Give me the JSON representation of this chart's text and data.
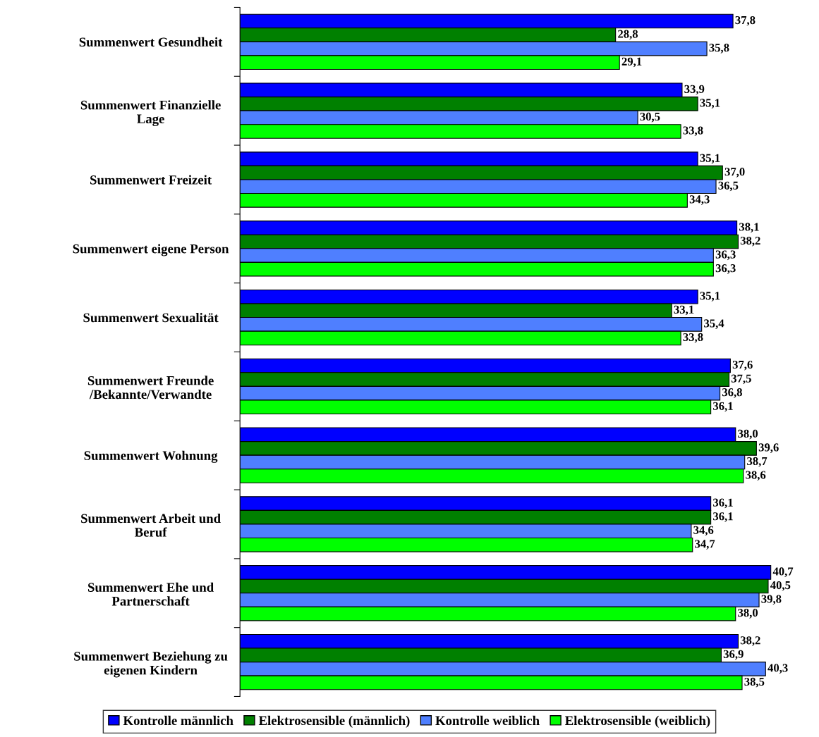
{
  "chart_data": {
    "type": "bar",
    "orientation": "horizontal",
    "categories": [
      "Summenwert Gesundheit",
      "Summenwert Finanzielle\nLage",
      "Summenwert Freizeit",
      "Summenwert eigene Person",
      "Summenwert Sexualität",
      "Summenwert Freunde\n/Bekannte/Verwandte",
      "Summenwert Wohnung",
      "Summenwert Arbeit und\nBeruf",
      "Summenwert Ehe und\nPartnerschaft",
      "Summenwert Beziehung zu\neigenen Kindern"
    ],
    "series": [
      {
        "name": "Kontrolle männlich",
        "color": "#0000ff",
        "values": [
          37.8,
          33.9,
          35.1,
          38.1,
          35.1,
          37.6,
          38.0,
          36.1,
          40.7,
          38.2
        ],
        "value_labels": [
          "37,8",
          "33,9",
          "35,1",
          "38,1",
          "35,1",
          "37,6",
          "38,0",
          "36,1",
          "40,7",
          "38,2"
        ]
      },
      {
        "name": "Elektrosensible (männlich)",
        "color": "#008000",
        "values": [
          28.8,
          35.1,
          37.0,
          38.2,
          33.1,
          37.5,
          39.6,
          36.1,
          40.5,
          36.9
        ],
        "value_labels": [
          "28,8",
          "35,1",
          "37,0",
          "38,2",
          "33,1",
          "37,5",
          "39,6",
          "36,1",
          "40,5",
          "36,9"
        ]
      },
      {
        "name": "Kontrolle weiblich",
        "color": "#4f7fff",
        "values": [
          35.8,
          30.5,
          36.5,
          36.3,
          35.4,
          36.8,
          38.7,
          34.6,
          39.8,
          40.3
        ],
        "value_labels": [
          "35,8",
          "30,5",
          "36,5",
          "36,3",
          "35,4",
          "36,8",
          "38,7",
          "34,6",
          "39,8",
          "40,3"
        ]
      },
      {
        "name": "Elektrosensible (weiblich)",
        "color": "#00ff00",
        "values": [
          29.1,
          33.8,
          34.3,
          36.3,
          33.8,
          36.1,
          38.6,
          34.7,
          38.0,
          38.5
        ],
        "value_labels": [
          "29,1",
          "33,8",
          "34,3",
          "36,3",
          "33,8",
          "36,1",
          "38,6",
          "34,7",
          "38,0",
          "38,5"
        ]
      }
    ],
    "grid": false,
    "legend": "bottom"
  }
}
